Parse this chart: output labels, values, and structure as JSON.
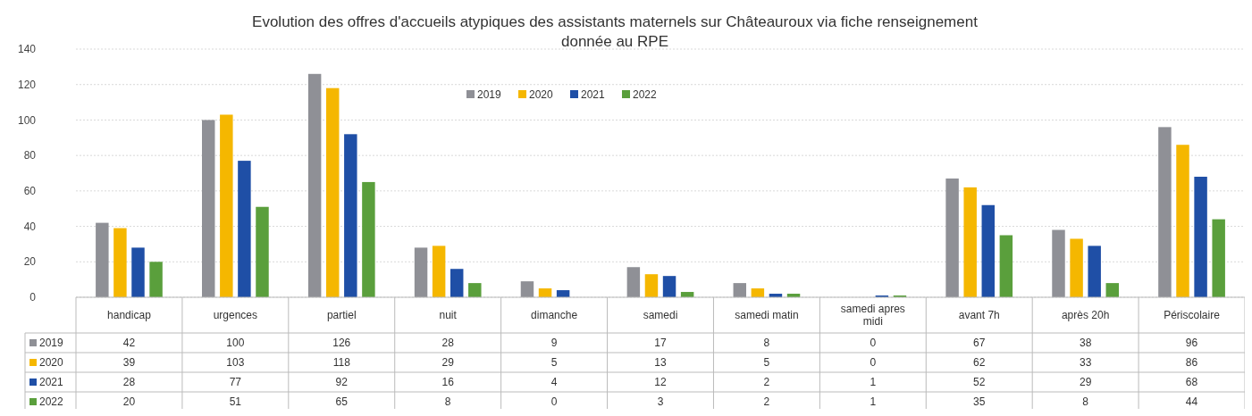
{
  "chart_data": {
    "type": "bar",
    "title": "Evolution des offres d'accueils atypiques des assistants maternels sur Châteauroux via fiche renseignement donnée au RPE",
    "categories": [
      "handicap",
      "urgences",
      "partiel",
      "nuit",
      "dimanche",
      "samedi",
      "samedi matin",
      "samedi apres midi",
      "avant 7h",
      "après 20h",
      "Périscolaire"
    ],
    "series": [
      {
        "name": "2019",
        "color": "#8f9096",
        "values": [
          42,
          100,
          126,
          28,
          9,
          17,
          8,
          0,
          67,
          38,
          96
        ]
      },
      {
        "name": "2020",
        "color": "#f5b700",
        "values": [
          39,
          103,
          118,
          29,
          5,
          13,
          5,
          0,
          62,
          33,
          86
        ]
      },
      {
        "name": "2021",
        "color": "#1f4fa6",
        "values": [
          28,
          77,
          92,
          16,
          4,
          12,
          2,
          1,
          52,
          29,
          68
        ]
      },
      {
        "name": "2022",
        "color": "#5a9f3c",
        "values": [
          20,
          51,
          65,
          8,
          0,
          3,
          2,
          1,
          35,
          8,
          44
        ]
      }
    ],
    "ylim": [
      0,
      140
    ],
    "yticks": [
      0,
      20,
      40,
      60,
      80,
      100,
      120,
      140
    ],
    "grid": "y",
    "legend": "top",
    "data_labels": true
  }
}
